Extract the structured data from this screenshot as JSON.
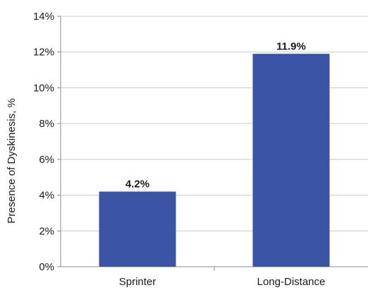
{
  "chart_data": {
    "type": "bar",
    "categories": [
      "Sprinter",
      "Long-Distance"
    ],
    "values": [
      4.2,
      11.9
    ],
    "value_labels": [
      "4.2%",
      "11.9%"
    ],
    "ylabel": "Presence of Dyskinesis, %",
    "ylim": [
      0,
      14
    ],
    "y_ticks": [
      0,
      2,
      4,
      6,
      8,
      10,
      12,
      14
    ],
    "y_tick_labels": [
      "0%",
      "2%",
      "4%",
      "6%",
      "8%",
      "10%",
      "12%",
      "14%"
    ],
    "grid": true,
    "legend": "none",
    "colors": {
      "bar": "#3a53a4",
      "grid": "#c8c8c8",
      "axis": "#8c8c8c"
    }
  }
}
